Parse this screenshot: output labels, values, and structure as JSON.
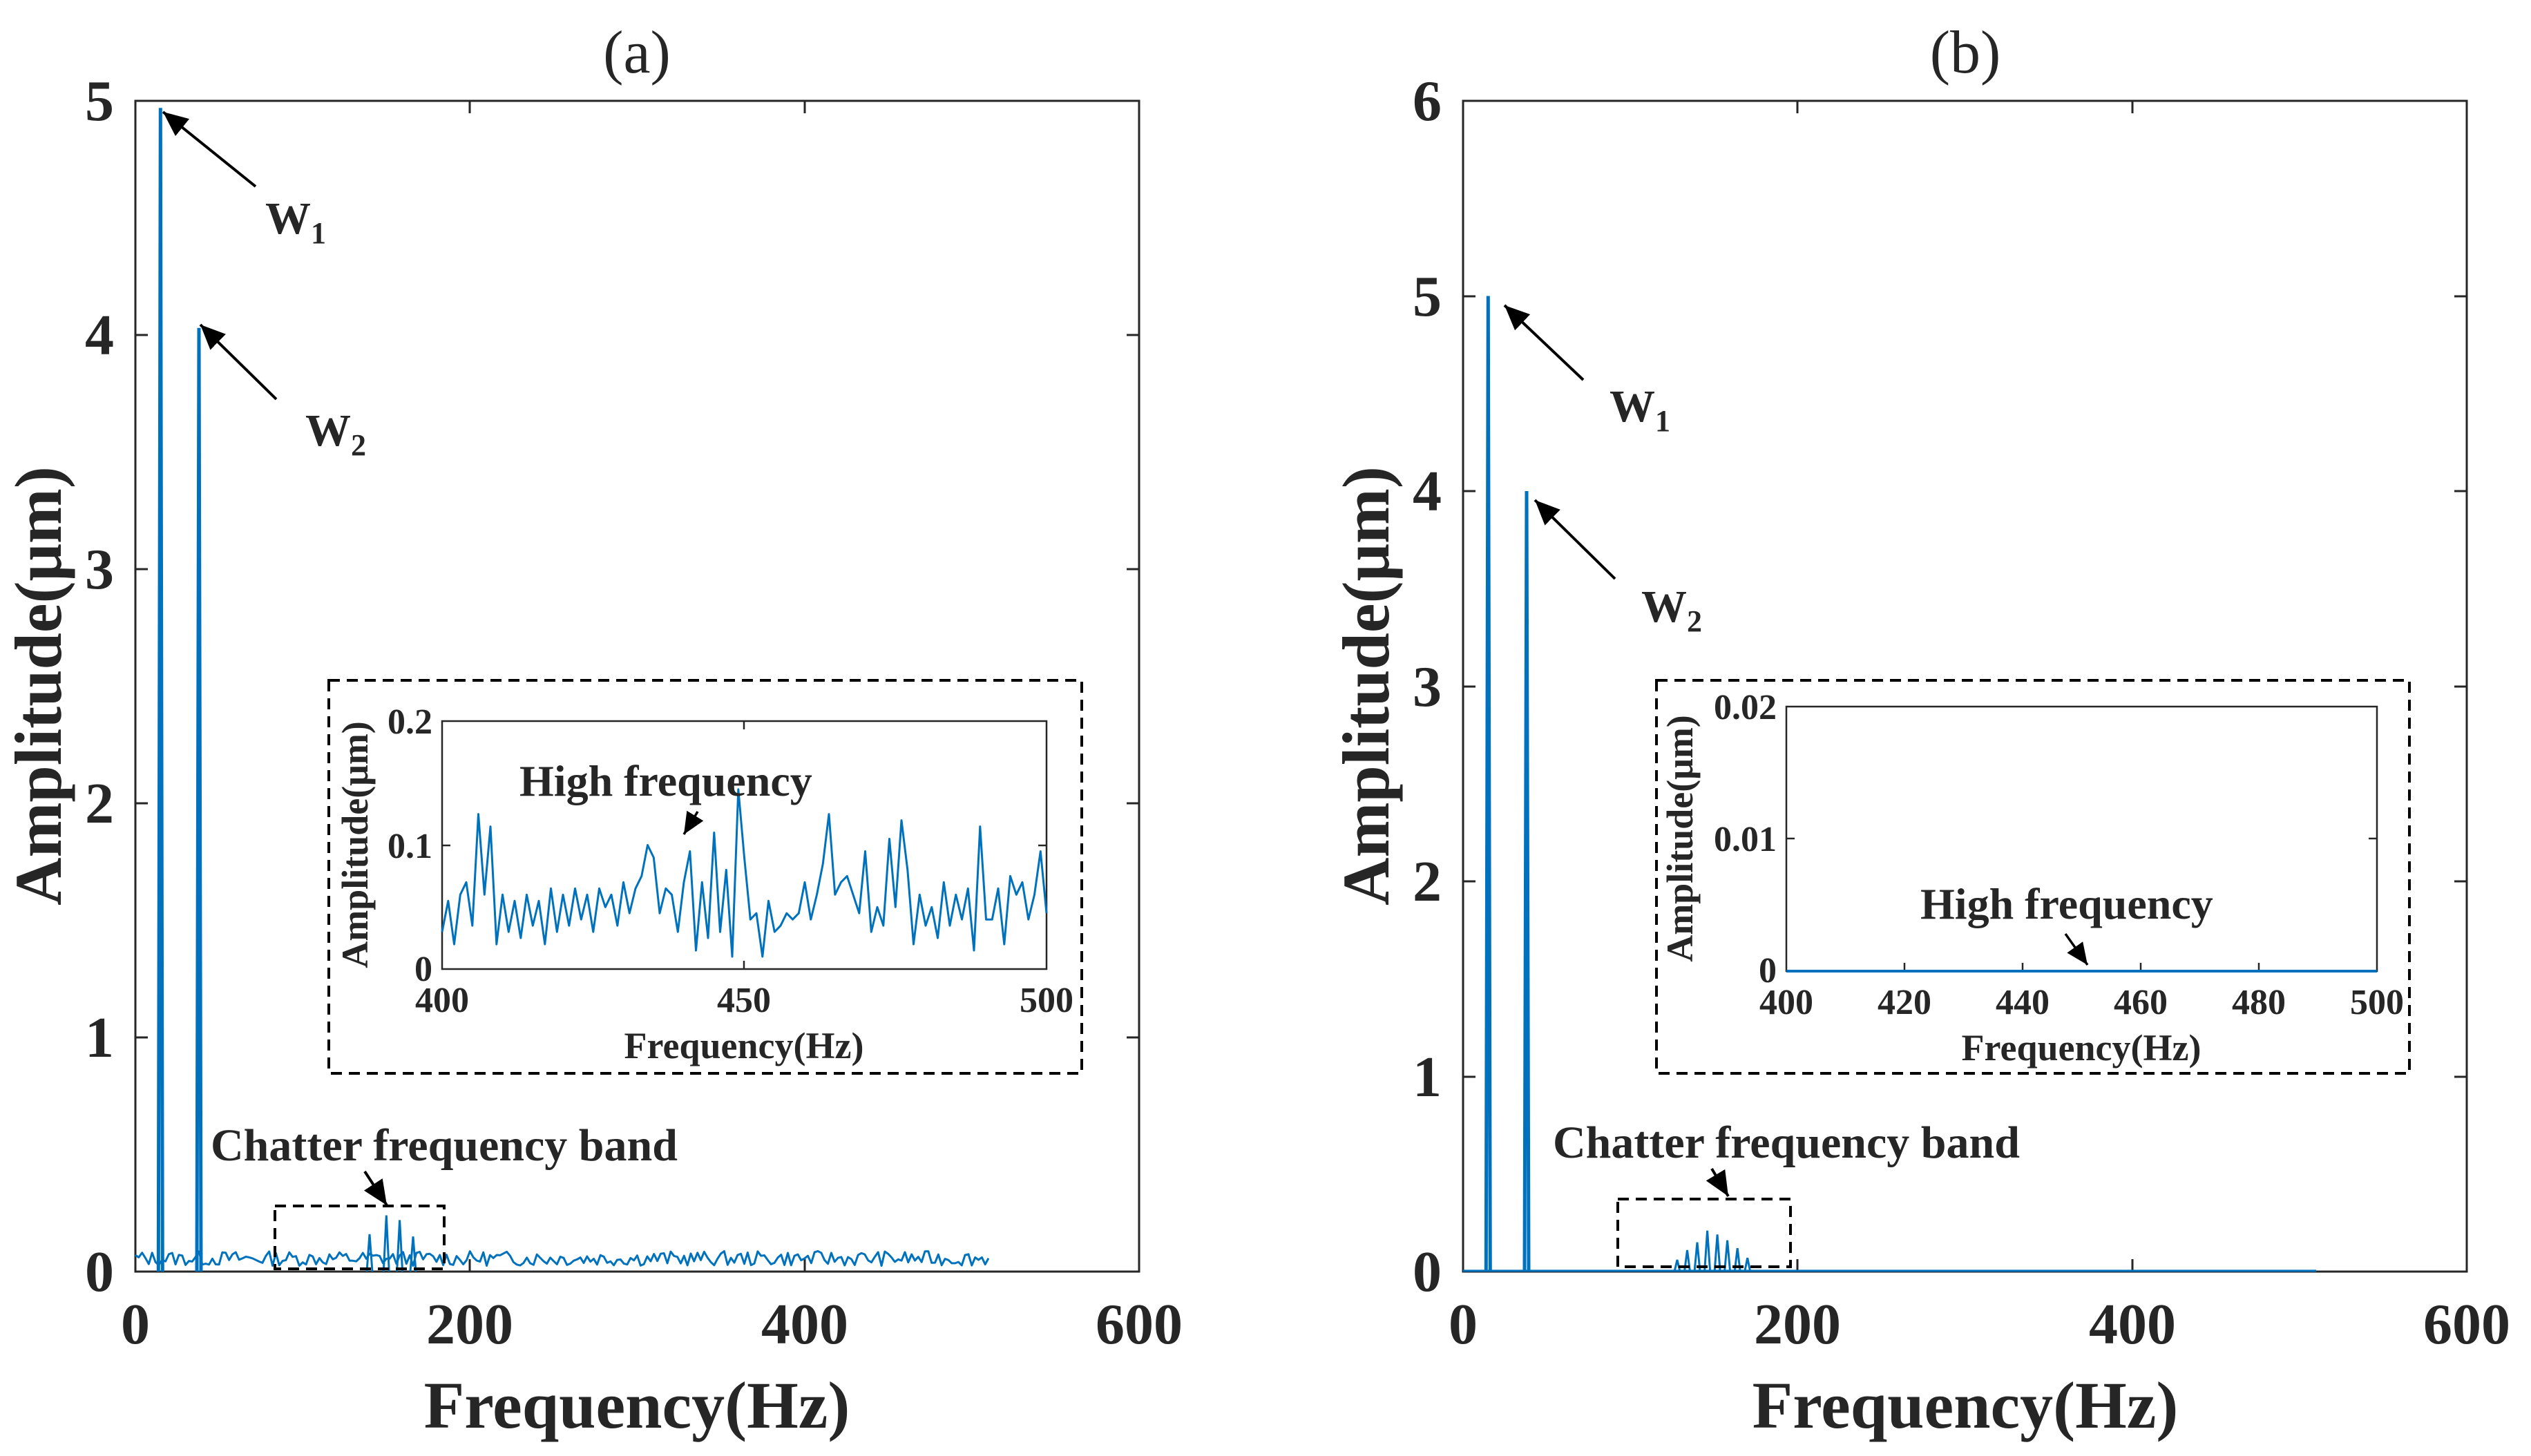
{
  "chart_data": [
    {
      "type": "line",
      "title": "(a)",
      "xlabel": "Frequency(Hz)",
      "ylabel": "Amplitude(μm)",
      "xlim": [
        0,
        600
      ],
      "ylim": [
        0,
        5
      ],
      "xticks": [
        "0",
        "200",
        "400",
        "600"
      ],
      "yticks": [
        "0",
        "1",
        "2",
        "3",
        "4",
        "5"
      ],
      "color": "#0072BD",
      "peaks": [
        {
          "label": "W",
          "sub": "1",
          "frequency": 15,
          "amplitude": 4.97
        },
        {
          "label": "W",
          "sub": "2",
          "frequency": 38,
          "amplitude": 4.03
        }
      ],
      "noise_end_hz": 510,
      "noise_level": 0.07,
      "band_label": "Chatter frequency band",
      "band_range_hz": [
        82,
        182
      ],
      "band_peaks": [
        {
          "frequency": 140,
          "amplitude": 0.16
        },
        {
          "frequency": 150,
          "amplitude": 0.24
        },
        {
          "frequency": 158,
          "amplitude": 0.22
        },
        {
          "frequency": 166,
          "amplitude": 0.15
        }
      ],
      "inset": {
        "xlabel": "Frequency(Hz)",
        "ylabel": "Amplitude(μm)",
        "xlim": [
          400,
          500
        ],
        "ylim": [
          0,
          0.2
        ],
        "xticks": [
          "400",
          "450",
          "500"
        ],
        "yticks": [
          "0",
          "0.1",
          "0.2"
        ],
        "annotation": "High frequency",
        "x": [
          400,
          401,
          402,
          403,
          404,
          405,
          406,
          407,
          408,
          409,
          410,
          411,
          412,
          413,
          414,
          415,
          416,
          417,
          418,
          419,
          420,
          421,
          422,
          423,
          424,
          425,
          426,
          427,
          428,
          429,
          430,
          431,
          432,
          433,
          434,
          435,
          436,
          437,
          438,
          439,
          440,
          441,
          442,
          443,
          444,
          445,
          446,
          447,
          448,
          449,
          450,
          451,
          452,
          453,
          454,
          455,
          456,
          457,
          458,
          459,
          460,
          461,
          462,
          463,
          464,
          465,
          466,
          467,
          468,
          469,
          470,
          471,
          472,
          473,
          474,
          475,
          476,
          477,
          478,
          479,
          480,
          481,
          482,
          483,
          484,
          485,
          486,
          487,
          488,
          489,
          490,
          491,
          492,
          493,
          494,
          495,
          496,
          497,
          498,
          499,
          500
        ],
        "values": [
          0.03,
          0.055,
          0.02,
          0.06,
          0.07,
          0.035,
          0.125,
          0.06,
          0.115,
          0.02,
          0.06,
          0.03,
          0.055,
          0.025,
          0.06,
          0.035,
          0.055,
          0.02,
          0.065,
          0.03,
          0.06,
          0.035,
          0.065,
          0.04,
          0.06,
          0.03,
          0.065,
          0.05,
          0.06,
          0.035,
          0.07,
          0.045,
          0.065,
          0.075,
          0.1,
          0.09,
          0.045,
          0.065,
          0.06,
          0.03,
          0.07,
          0.095,
          0.015,
          0.07,
          0.025,
          0.11,
          0.03,
          0.08,
          0.01,
          0.145,
          0.09,
          0.04,
          0.045,
          0.01,
          0.055,
          0.03,
          0.035,
          0.045,
          0.04,
          0.045,
          0.07,
          0.04,
          0.06,
          0.085,
          0.125,
          0.06,
          0.07,
          0.075,
          0.06,
          0.045,
          0.095,
          0.03,
          0.05,
          0.035,
          0.105,
          0.05,
          0.12,
          0.08,
          0.02,
          0.06,
          0.035,
          0.05,
          0.025,
          0.07,
          0.035,
          0.06,
          0.04,
          0.065,
          0.015,
          0.115,
          0.04,
          0.04,
          0.065,
          0.02,
          0.075,
          0.06,
          0.07,
          0.04,
          0.06,
          0.095,
          0.045
        ]
      }
    },
    {
      "type": "line",
      "title": "(b)",
      "xlabel": "Frequency(Hz)",
      "ylabel": "Amplitude(μm)",
      "xlim": [
        0,
        600
      ],
      "ylim": [
        0,
        6
      ],
      "xticks": [
        "0",
        "200",
        "400",
        "600"
      ],
      "yticks": [
        "0",
        "1",
        "2",
        "3",
        "4",
        "5",
        "6"
      ],
      "color": "#0072BD",
      "peaks": [
        {
          "label": "W",
          "sub": "1",
          "frequency": 15,
          "amplitude": 5.0
        },
        {
          "label": "W",
          "sub": "2",
          "frequency": 38,
          "amplitude": 4.0
        }
      ],
      "noise_end_hz": 510,
      "noise_level": 0.0,
      "band_label": "Chatter frequency band",
      "band_range_hz": [
        92,
        192
      ],
      "band_peaks": [
        {
          "frequency": 128,
          "amplitude": 0.06
        },
        {
          "frequency": 134,
          "amplitude": 0.11
        },
        {
          "frequency": 140,
          "amplitude": 0.15
        },
        {
          "frequency": 146,
          "amplitude": 0.21
        },
        {
          "frequency": 152,
          "amplitude": 0.19
        },
        {
          "frequency": 158,
          "amplitude": 0.16
        },
        {
          "frequency": 164,
          "amplitude": 0.12
        },
        {
          "frequency": 170,
          "amplitude": 0.07
        }
      ],
      "inset": {
        "xlabel": "Frequency(Hz)",
        "ylabel": "Amplitude(μm)",
        "xlim": [
          400,
          500
        ],
        "ylim": [
          0,
          0.02
        ],
        "xticks": [
          "400",
          "420",
          "440",
          "460",
          "480",
          "500"
        ],
        "yticks": [
          "0",
          "0.01",
          "0.02"
        ],
        "annotation": "High frequency",
        "x": [
          400,
          500
        ],
        "values": [
          0,
          0
        ]
      }
    }
  ]
}
